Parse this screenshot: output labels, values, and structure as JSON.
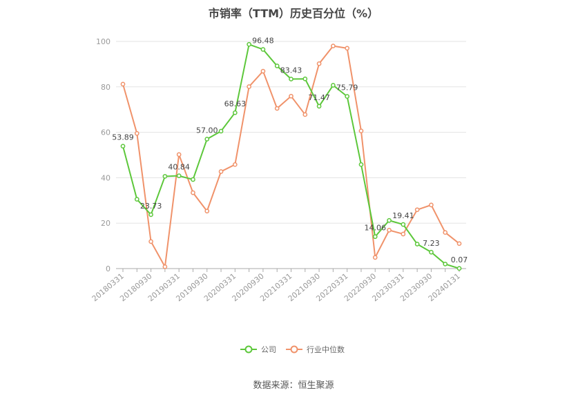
{
  "title": "市销率（TTM）历史百分位（%）",
  "source": "数据来源：恒生聚源",
  "colors": {
    "company": "#5cc73a",
    "industry": "#f0926a",
    "grid": "#e3e3e3",
    "axis": "#999999"
  },
  "chart_data": {
    "type": "line",
    "title": "市销率（TTM）历史百分位（%）",
    "ylim": [
      0,
      100
    ],
    "yticks": [
      0,
      20,
      40,
      60,
      80,
      100
    ],
    "grid": true,
    "legend_position": "bottom",
    "x": [
      "20180331",
      "20180630",
      "20180930",
      "20181231",
      "20190331",
      "20190630",
      "20190930",
      "20191231",
      "20200331",
      "20200630",
      "20200930",
      "20201231",
      "20210331",
      "20210630",
      "20210930",
      "20211231",
      "20220331",
      "20220630",
      "20220930",
      "20221231",
      "20230331",
      "20230630",
      "20230930",
      "20231231",
      "20240131"
    ],
    "xtick_labels": [
      "20180331",
      "20180930",
      "20190331",
      "20190930",
      "20200331",
      "20200930",
      "20210331",
      "20210930",
      "20220331",
      "20220930",
      "20230331",
      "20230930",
      "20240131"
    ],
    "series": [
      {
        "name": "公司",
        "values": [
          53.89,
          30.5,
          23.73,
          40.6,
          40.84,
          39.2,
          57.0,
          60.5,
          68.63,
          98.7,
          96.48,
          89.2,
          83.43,
          83.5,
          71.47,
          80.7,
          75.79,
          45.8,
          14.06,
          21.2,
          19.41,
          10.8,
          7.23,
          2.0,
          0.07
        ],
        "labels": [
          "53.89",
          "",
          "23.73",
          "",
          "40.84",
          "",
          "57.00",
          "",
          "68.63",
          "",
          "96.48",
          "",
          "83.43",
          "",
          "71.47",
          "",
          "75.79",
          "",
          "14.06",
          "",
          "19.41",
          "",
          "7.23",
          "",
          "0.07"
        ]
      },
      {
        "name": "行业中位数",
        "values": [
          81.2,
          59.5,
          11.9,
          0.8,
          50.2,
          33.4,
          25.3,
          42.7,
          45.8,
          80.1,
          86.9,
          70.5,
          75.9,
          67.8,
          90.2,
          98.0,
          97.0,
          60.6,
          4.9,
          16.9,
          15.2,
          25.9,
          28.0,
          15.9,
          11.0
        ]
      }
    ]
  }
}
